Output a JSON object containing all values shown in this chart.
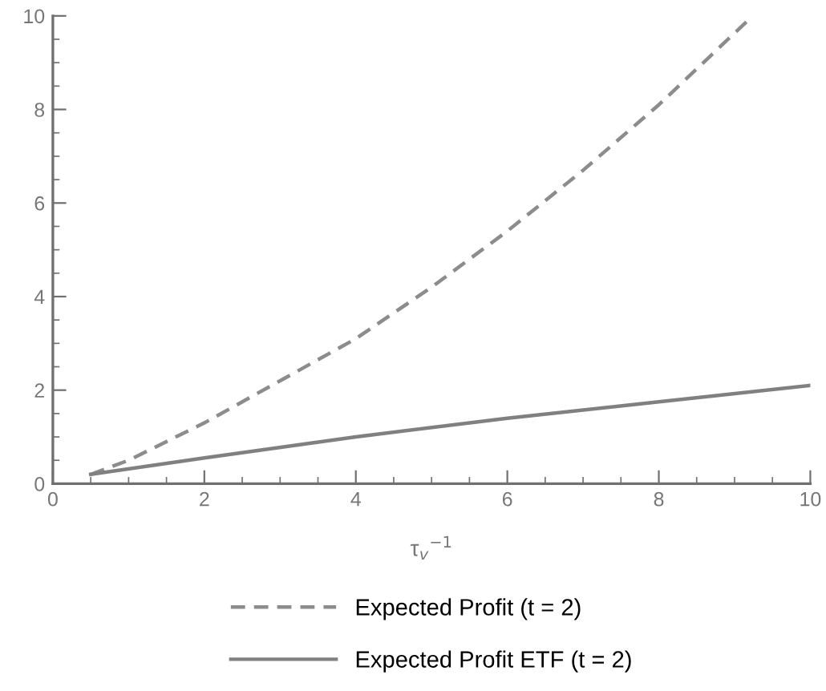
{
  "chart_data": {
    "type": "line",
    "xlabel": "τ$_{v}$$^{−1}$",
    "xlim": [
      0,
      10
    ],
    "ylim": [
      0,
      10
    ],
    "xticks": [
      0,
      2,
      4,
      6,
      8,
      10
    ],
    "yticks": [
      0,
      2,
      4,
      6,
      8,
      10
    ],
    "grid": false,
    "legend": "bottom",
    "marker": "none",
    "series": [
      {
        "name": "Expected Profit (t = 2)",
        "color": "#8c8c8c",
        "line_style": "dashed",
        "x": [
          0.5,
          1,
          2,
          3,
          4,
          5,
          6,
          7,
          8,
          9.24
        ],
        "values": [
          0.2,
          0.5,
          1.3,
          2.2,
          3.1,
          4.2,
          5.4,
          6.7,
          8.1,
          10
        ]
      },
      {
        "name": "Expected Profit ETF (t = 2)",
        "color": "#808080",
        "line_style": "solid",
        "x": [
          0.5,
          2,
          4,
          6,
          8,
          10
        ],
        "values": [
          0.2,
          0.55,
          1.0,
          1.4,
          1.75,
          2.1
        ]
      }
    ]
  }
}
